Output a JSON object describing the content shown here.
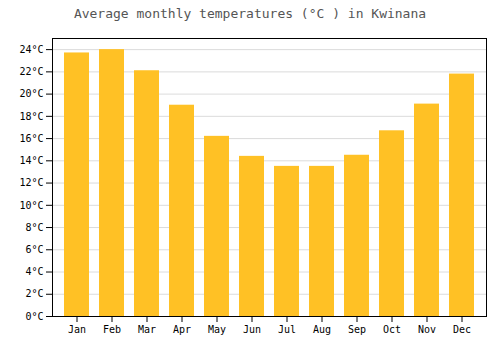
{
  "chart_data": {
    "type": "bar",
    "title": "Average monthly temperatures (°C ) in Kwinana",
    "categories": [
      "Jan",
      "Feb",
      "Mar",
      "Apr",
      "May",
      "Jun",
      "Jul",
      "Aug",
      "Sep",
      "Oct",
      "Nov",
      "Dec"
    ],
    "values": [
      23.7,
      24.0,
      22.1,
      19.0,
      16.2,
      14.4,
      13.5,
      13.5,
      14.5,
      16.7,
      19.1,
      21.8
    ],
    "color": "#FFC125",
    "ylim": [
      0,
      25
    ],
    "yticks": [
      {
        "value": 0,
        "label": "0°C"
      },
      {
        "value": 2,
        "label": "2°C"
      },
      {
        "value": 4,
        "label": "4°C"
      },
      {
        "value": 6,
        "label": "6°C"
      },
      {
        "value": 8,
        "label": "8°C"
      },
      {
        "value": 10,
        "label": "10°C"
      },
      {
        "value": 12,
        "label": "12°C"
      },
      {
        "value": 14,
        "label": "14°C"
      },
      {
        "value": 16,
        "label": "16°C"
      },
      {
        "value": 18,
        "label": "18°C"
      },
      {
        "value": 20,
        "label": "20°C"
      },
      {
        "value": 22,
        "label": "22°C"
      },
      {
        "value": 24,
        "label": "24°C"
      }
    ],
    "grid": true
  }
}
